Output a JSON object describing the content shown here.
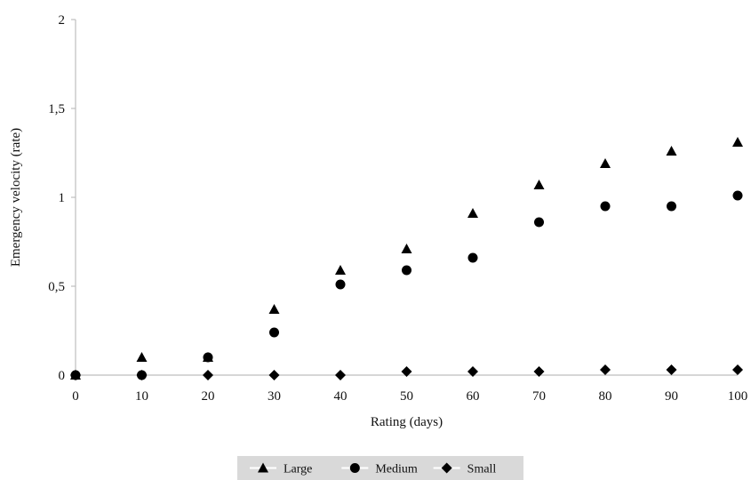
{
  "chart_data": {
    "type": "scatter",
    "xlabel": "Rating (days)",
    "ylabel": "Emergency velocity (rate)",
    "x": [
      0,
      10,
      20,
      30,
      40,
      50,
      60,
      70,
      80,
      90,
      100
    ],
    "xlim": [
      0,
      100
    ],
    "ylim": [
      0,
      2
    ],
    "x_ticks": [
      "0",
      "10",
      "20",
      "30",
      "40",
      "50",
      "60",
      "70",
      "80",
      "90",
      "100"
    ],
    "y_ticks": [
      "0",
      "0,5",
      "1",
      "1,5",
      "2"
    ],
    "y_tick_values": [
      0,
      0.5,
      1,
      1.5,
      2
    ],
    "grid": false,
    "legend_position": "bottom",
    "series": [
      {
        "name": "Large",
        "marker": "triangle",
        "color": "#000000",
        "values": [
          0,
          0.1,
          0.1,
          0.37,
          0.59,
          0.71,
          0.91,
          1.07,
          1.19,
          1.26,
          1.31
        ]
      },
      {
        "name": "Medium",
        "marker": "circle",
        "color": "#000000",
        "values": [
          0,
          0,
          0.1,
          0.24,
          0.51,
          0.59,
          0.66,
          0.86,
          0.95,
          0.95,
          1.01
        ]
      },
      {
        "name": "Small",
        "marker": "diamond",
        "color": "#000000",
        "values": [
          0,
          0,
          0,
          0,
          0,
          0.02,
          0.02,
          0.02,
          0.03,
          0.03,
          0.03
        ]
      }
    ]
  }
}
